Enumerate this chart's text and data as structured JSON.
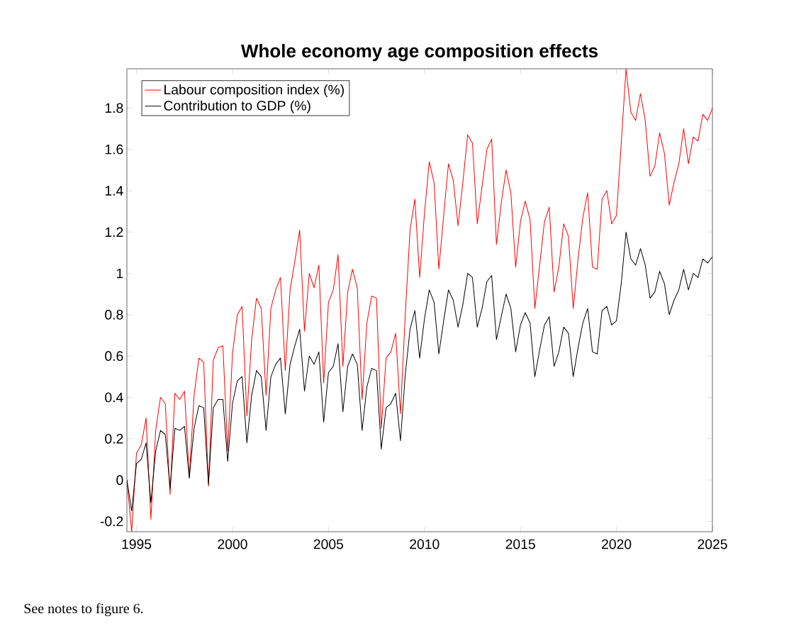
{
  "chart_data": {
    "type": "line",
    "title": "Whole economy age composition effects",
    "x": [
      1994.5,
      1994.75,
      1995,
      1995.25,
      1995.5,
      1995.75,
      1996,
      1996.25,
      1996.5,
      1996.75,
      1997,
      1997.25,
      1997.5,
      1997.75,
      1998,
      1998.25,
      1998.5,
      1998.75,
      1999,
      1999.25,
      1999.5,
      1999.75,
      2000,
      2000.25,
      2000.5,
      2000.75,
      2001,
      2001.25,
      2001.5,
      2001.75,
      2002,
      2002.25,
      2002.5,
      2002.75,
      2003,
      2003.25,
      2003.5,
      2003.75,
      2004,
      2004.25,
      2004.5,
      2004.75,
      2005,
      2005.25,
      2005.5,
      2005.75,
      2006,
      2006.25,
      2006.5,
      2006.75,
      2007,
      2007.25,
      2007.5,
      2007.75,
      2008,
      2008.25,
      2008.5,
      2008.75,
      2009,
      2009.25,
      2009.5,
      2009.75,
      2010,
      2010.25,
      2010.5,
      2010.75,
      2011,
      2011.25,
      2011.5,
      2011.75,
      2012,
      2012.25,
      2012.5,
      2012.75,
      2013,
      2013.25,
      2013.5,
      2013.75,
      2014,
      2014.25,
      2014.5,
      2014.75,
      2015,
      2015.25,
      2015.5,
      2015.75,
      2016,
      2016.25,
      2016.5,
      2016.75,
      2017,
      2017.25,
      2017.5,
      2017.75,
      2018,
      2018.25,
      2018.5,
      2018.75,
      2019,
      2019.25,
      2019.5,
      2019.75,
      2020,
      2020.25,
      2020.5,
      2020.75,
      2021,
      2021.25,
      2021.5,
      2021.75,
      2022,
      2022.25,
      2022.5,
      2022.75,
      2023,
      2023.25,
      2023.5,
      2023.75,
      2024,
      2024.25,
      2024.5,
      2024.75,
      2025
    ],
    "series": [
      {
        "name": "Labour composition index (%)",
        "color": "#ff0000",
        "values": [
          0.0,
          -0.25,
          0.13,
          0.17,
          0.3,
          -0.19,
          0.24,
          0.4,
          0.37,
          -0.07,
          0.42,
          0.39,
          0.43,
          0.01,
          0.41,
          0.59,
          0.57,
          -0.03,
          0.58,
          0.64,
          0.65,
          0.14,
          0.61,
          0.8,
          0.84,
          0.31,
          0.68,
          0.88,
          0.83,
          0.41,
          0.83,
          0.92,
          0.98,
          0.53,
          0.92,
          1.06,
          1.21,
          0.72,
          1.0,
          0.93,
          1.04,
          0.47,
          0.86,
          0.92,
          1.09,
          0.55,
          0.91,
          1.02,
          0.93,
          0.39,
          0.76,
          0.89,
          0.88,
          0.25,
          0.59,
          0.62,
          0.71,
          0.32,
          0.8,
          1.21,
          1.36,
          0.98,
          1.29,
          1.54,
          1.44,
          1.02,
          1.28,
          1.53,
          1.45,
          1.23,
          1.44,
          1.67,
          1.63,
          1.24,
          1.42,
          1.6,
          1.65,
          1.14,
          1.34,
          1.5,
          1.39,
          1.03,
          1.25,
          1.35,
          1.26,
          0.83,
          1.04,
          1.25,
          1.32,
          0.91,
          1.03,
          1.24,
          1.18,
          0.83,
          1.07,
          1.27,
          1.39,
          1.03,
          1.02,
          1.36,
          1.4,
          1.24,
          1.28,
          1.63,
          1.99,
          1.78,
          1.74,
          1.87,
          1.74,
          1.47,
          1.52,
          1.68,
          1.58,
          1.33,
          1.44,
          1.53,
          1.7,
          1.53,
          1.66,
          1.64,
          1.77,
          1.74,
          1.8
        ]
      },
      {
        "name": "Contribution to GDP (%)",
        "color": "#000000",
        "values": [
          0.0,
          -0.15,
          0.08,
          0.1,
          0.18,
          -0.11,
          0.14,
          0.24,
          0.22,
          -0.04,
          0.25,
          0.24,
          0.26,
          0.01,
          0.25,
          0.36,
          0.35,
          -0.02,
          0.35,
          0.39,
          0.39,
          0.09,
          0.37,
          0.48,
          0.5,
          0.18,
          0.41,
          0.53,
          0.5,
          0.24,
          0.5,
          0.56,
          0.59,
          0.32,
          0.56,
          0.65,
          0.73,
          0.43,
          0.6,
          0.56,
          0.62,
          0.28,
          0.52,
          0.55,
          0.66,
          0.33,
          0.55,
          0.61,
          0.56,
          0.24,
          0.45,
          0.54,
          0.53,
          0.15,
          0.35,
          0.37,
          0.42,
          0.19,
          0.51,
          0.73,
          0.82,
          0.59,
          0.78,
          0.92,
          0.86,
          0.61,
          0.77,
          0.92,
          0.87,
          0.74,
          0.85,
          1.0,
          0.98,
          0.74,
          0.83,
          0.96,
          0.99,
          0.68,
          0.79,
          0.9,
          0.83,
          0.62,
          0.75,
          0.81,
          0.76,
          0.5,
          0.63,
          0.75,
          0.79,
          0.55,
          0.62,
          0.74,
          0.71,
          0.5,
          0.64,
          0.76,
          0.83,
          0.62,
          0.61,
          0.82,
          0.84,
          0.75,
          0.77,
          0.95,
          1.2,
          1.07,
          1.04,
          1.12,
          1.04,
          0.88,
          0.91,
          1.01,
          0.95,
          0.8,
          0.87,
          0.92,
          1.02,
          0.92,
          1.0,
          0.98,
          1.07,
          1.05,
          1.08
        ]
      }
    ],
    "xlim": [
      1994.5,
      2025
    ],
    "ylim": [
      -0.25,
      1.99
    ],
    "xticks": [
      1995,
      2000,
      2005,
      2010,
      2015,
      2020,
      2025
    ],
    "yticks": [
      -0.2,
      0,
      0.2,
      0.4,
      0.6,
      0.8,
      1,
      1.2,
      1.4,
      1.6,
      1.8
    ],
    "legend": "top left",
    "annotations": [
      "See notes to figure 6."
    ]
  }
}
